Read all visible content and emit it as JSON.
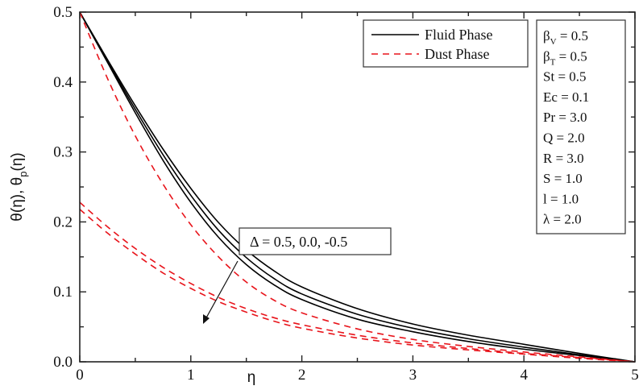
{
  "chart_data": {
    "type": "line",
    "title": "",
    "xlabel": "η",
    "ylabel": "θ(η), θp(η)",
    "xlim": [
      0,
      5
    ],
    "ylim": [
      0,
      0.5
    ],
    "x_ticks": [
      "0",
      "1",
      "2",
      "3",
      "4",
      "5"
    ],
    "y_ticks": [
      "0.0",
      "0.1",
      "0.2",
      "0.3",
      "0.4",
      "0.5"
    ],
    "grid": false,
    "legend_position": "upper right",
    "legend": [
      {
        "label": "Fluid Phase",
        "style": "solid",
        "color": "#000000"
      },
      {
        "label": "Dust Phase",
        "style": "dashed",
        "color": "#e8141b"
      }
    ],
    "annotation": {
      "text": "Δ = 0.5, 0.0, -0.5",
      "arrow": "down-left"
    },
    "parameters": [
      {
        "symbol": "β",
        "sub": "V",
        "value": "= 0.5"
      },
      {
        "symbol": "β",
        "sub": "T",
        "value": "= 0.5"
      },
      {
        "symbol": "St",
        "sub": "",
        "value": "= 0.5"
      },
      {
        "symbol": "Ec",
        "sub": "",
        "value": "= 0.1"
      },
      {
        "symbol": "Pr",
        "sub": "",
        "value": "= 3.0"
      },
      {
        "symbol": "Q",
        "sub": "",
        "value": "= 2.0"
      },
      {
        "symbol": "R",
        "sub": "",
        "value": "= 3.0"
      },
      {
        "symbol": "S",
        "sub": "",
        "value": "= 1.0"
      },
      {
        "symbol": "l",
        "sub": "",
        "value": "= 1.0"
      },
      {
        "symbol": "λ",
        "sub": "",
        "value": "= 2.0"
      }
    ],
    "x": [
      0,
      0.25,
      0.5,
      0.75,
      1.0,
      1.25,
      1.5,
      1.75,
      2.0,
      2.5,
      3.0,
      3.5,
      4.0,
      4.5,
      5.0
    ],
    "series": [
      {
        "name": "Fluid Phase Δ=0.5",
        "style": "solid",
        "color": "#000000",
        "values": [
          0.5,
          0.432,
          0.366,
          0.304,
          0.248,
          0.199,
          0.16,
          0.13,
          0.107,
          0.076,
          0.054,
          0.038,
          0.025,
          0.012,
          0.0
        ]
      },
      {
        "name": "Fluid Phase Δ=0.0",
        "style": "solid",
        "color": "#000000",
        "values": [
          0.5,
          0.43,
          0.361,
          0.296,
          0.238,
          0.188,
          0.149,
          0.119,
          0.097,
          0.068,
          0.048,
          0.033,
          0.021,
          0.01,
          0.0
        ]
      },
      {
        "name": "Fluid Phase Δ=-0.5",
        "style": "solid",
        "color": "#000000",
        "values": [
          0.5,
          0.428,
          0.356,
          0.288,
          0.228,
          0.178,
          0.139,
          0.11,
          0.089,
          0.061,
          0.043,
          0.029,
          0.018,
          0.009,
          0.0
        ]
      },
      {
        "name": "Dust Phase Δ=0.5",
        "style": "dashed",
        "color": "#e8141b",
        "values": [
          0.5,
          0.405,
          0.323,
          0.254,
          0.196,
          0.15,
          0.114,
          0.088,
          0.07,
          0.047,
          0.032,
          0.022,
          0.014,
          0.007,
          0.0
        ]
      },
      {
        "name": "Dust Phase Δ=0.0",
        "style": "dashed",
        "color": "#e8141b",
        "values": [
          0.228,
          0.193,
          0.162,
          0.135,
          0.112,
          0.092,
          0.076,
          0.063,
          0.053,
          0.038,
          0.027,
          0.019,
          0.012,
          0.006,
          0.0
        ]
      },
      {
        "name": "Dust Phase Δ=-0.5",
        "style": "dashed",
        "color": "#e8141b",
        "values": [
          0.218,
          0.184,
          0.154,
          0.127,
          0.105,
          0.086,
          0.071,
          0.058,
          0.048,
          0.034,
          0.024,
          0.017,
          0.011,
          0.005,
          0.0
        ]
      }
    ]
  },
  "labels": {
    "ylabel_main": "θ(η), θ",
    "ylabel_sub": "p",
    "ylabel_tail": "(η)",
    "xlabel": "η",
    "legend_fluid": "Fluid Phase",
    "legend_dust": "Dust Phase",
    "annotation": "Δ = 0.5, 0.0, -0.5"
  }
}
